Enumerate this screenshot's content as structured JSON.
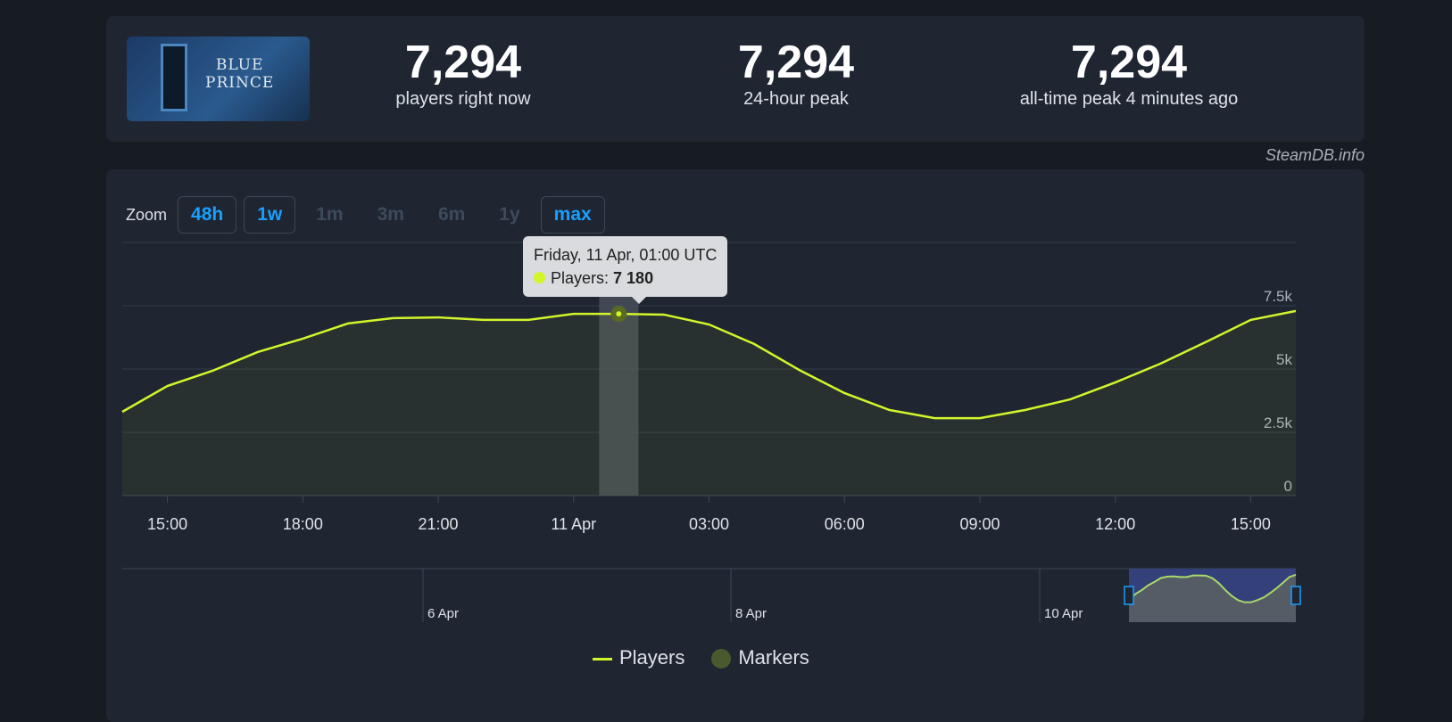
{
  "game": {
    "logo_text": "BLUE PRINCE"
  },
  "stats": [
    {
      "value": "7,294",
      "label": "players right now"
    },
    {
      "value": "7,294",
      "label": "24-hour peak"
    },
    {
      "value": "7,294",
      "label": "all-time peak 4 minutes ago"
    }
  ],
  "credit": "SteamDB.info",
  "zoom": {
    "label": "Zoom",
    "buttons": [
      {
        "label": "48h",
        "active": true
      },
      {
        "label": "1w",
        "active": true
      },
      {
        "label": "1m",
        "active": false
      },
      {
        "label": "3m",
        "active": false
      },
      {
        "label": "6m",
        "active": false
      },
      {
        "label": "1y",
        "active": false
      },
      {
        "label": "max",
        "active": true
      }
    ]
  },
  "tooltip": {
    "date": "Friday, 11 Apr, 01:00 UTC",
    "series": "Players: ",
    "value": "7 180"
  },
  "legend": {
    "players": "Players",
    "markers": "Markers"
  },
  "colors": {
    "line": "#d2f52a",
    "accent": "#1a9fff",
    "markers": "#4a5a2e"
  },
  "chart_data": {
    "type": "line",
    "x": [
      "14:00",
      "15:00",
      "16:00",
      "17:00",
      "18:00",
      "19:00",
      "20:00",
      "21:00",
      "22:00",
      "23:00",
      "00:00",
      "01:00",
      "02:00",
      "03:00",
      "04:00",
      "05:00",
      "06:00",
      "07:00",
      "08:00",
      "09:00",
      "10:00",
      "11:00",
      "12:00",
      "13:00",
      "14:00",
      "15:00",
      "16:00"
    ],
    "series": [
      {
        "name": "Players",
        "values": [
          3310,
          4330,
          4930,
          5670,
          6200,
          6800,
          7010,
          7040,
          6940,
          6940,
          7180,
          7180,
          7150,
          6760,
          5990,
          4960,
          4050,
          3380,
          3060,
          3060,
          3380,
          3800,
          4470,
          5210,
          6060,
          6940,
          7294
        ]
      }
    ],
    "xticks": [
      "15:00",
      "18:00",
      "21:00",
      "11 Apr",
      "03:00",
      "06:00",
      "09:00",
      "12:00",
      "15:00"
    ],
    "yticks": [
      "0",
      "2.5k",
      "5k",
      "7.5k"
    ],
    "ylim": [
      0,
      10000
    ],
    "grid": true,
    "highlight_index": 11,
    "navigator_labels": [
      "6 Apr",
      "8 Apr",
      "10 Apr"
    ]
  }
}
